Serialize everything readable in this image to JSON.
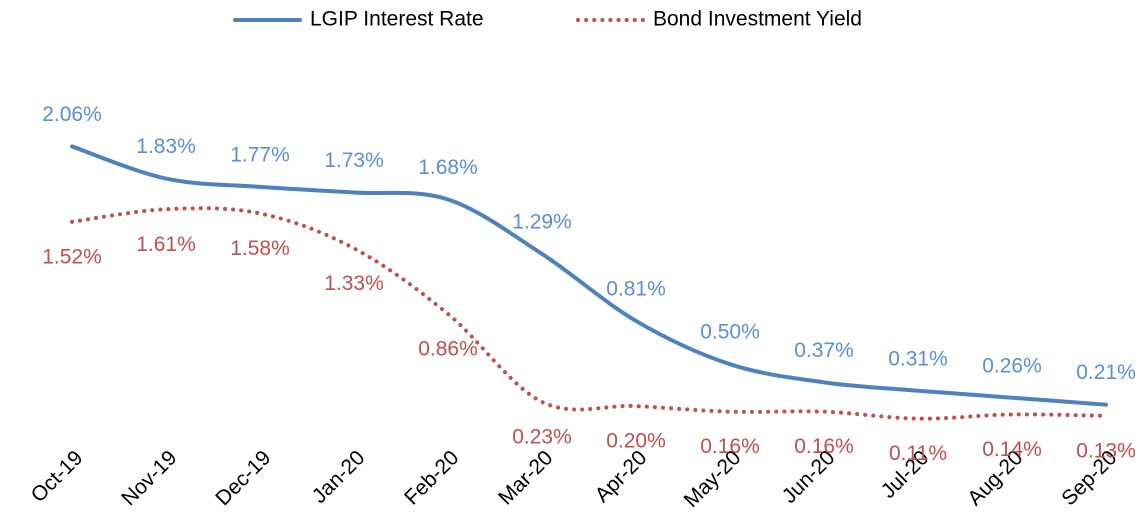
{
  "chart_data": {
    "type": "line",
    "categories": [
      "Oct-19",
      "Nov-19",
      "Dec-19",
      "Jan-20",
      "Feb-20",
      "Mar-20",
      "Apr-20",
      "May-20",
      "Jun-20",
      "Jul-20",
      "Aug-20",
      "Sep-20"
    ],
    "ylim": [
      0,
      2.5
    ],
    "legend": "top",
    "series": [
      {
        "name": "LGIP Interest Rate",
        "color": "#4f81bd",
        "label_color": "#5a8fd1",
        "dash": "solid",
        "values": [
          2.06,
          1.83,
          1.77,
          1.73,
          1.68,
          1.29,
          0.81,
          0.5,
          0.37,
          0.31,
          0.26,
          0.21
        ],
        "value_labels": [
          "2.06%",
          "1.83%",
          "1.77%",
          "1.73%",
          "1.68%",
          "1.29%",
          "0.81%",
          "0.50%",
          "0.37%",
          "0.31%",
          "0.26%",
          "0.21%"
        ]
      },
      {
        "name": "Bond Investment Yield",
        "color": "#c0504d",
        "label_color": "#c0504d",
        "dash": "dotted",
        "values": [
          1.52,
          1.61,
          1.58,
          1.33,
          0.86,
          0.23,
          0.2,
          0.16,
          0.16,
          0.11,
          0.14,
          0.13
        ],
        "value_labels": [
          "1.52%",
          "1.61%",
          "1.58%",
          "1.33%",
          "0.86%",
          "0.23%",
          "0.20%",
          "0.16%",
          "0.16%",
          "0.11%",
          "0.14%",
          "0.13%"
        ]
      }
    ]
  }
}
